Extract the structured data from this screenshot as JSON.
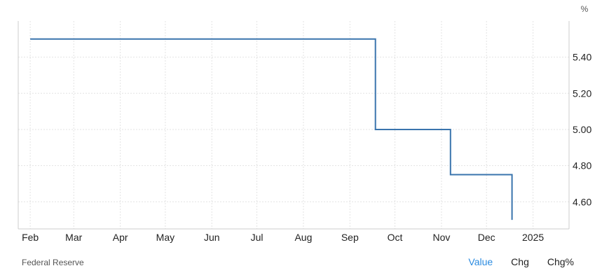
{
  "chart_data": {
    "type": "line",
    "step": true,
    "unit": "%",
    "x_ticks": [
      "Feb",
      "Mar",
      "Apr",
      "May",
      "Jun",
      "Jul",
      "Aug",
      "Sep",
      "Oct",
      "Nov",
      "Dec",
      "2025"
    ],
    "y_ticks": [
      "5.40",
      "5.20",
      "5.00",
      "4.80",
      "4.60"
    ],
    "ylim": [
      4.45,
      5.6
    ],
    "grid": true,
    "series": [
      {
        "color": "#3a74ad",
        "points": [
          {
            "x": "2024-02-01",
            "y": 5.5
          },
          {
            "x": "2024-09-18",
            "y": 5.5
          },
          {
            "x": "2024-09-18",
            "y": 5.0
          },
          {
            "x": "2024-11-07",
            "y": 5.0
          },
          {
            "x": "2024-11-07",
            "y": 4.75
          },
          {
            "x": "2024-12-18",
            "y": 4.75
          },
          {
            "x": "2024-12-18",
            "y": 4.5
          }
        ]
      }
    ]
  },
  "footer": {
    "source": "Federal Reserve",
    "tabs": [
      "Value",
      "Chg",
      "Chg%"
    ],
    "active_tab": "Value"
  }
}
